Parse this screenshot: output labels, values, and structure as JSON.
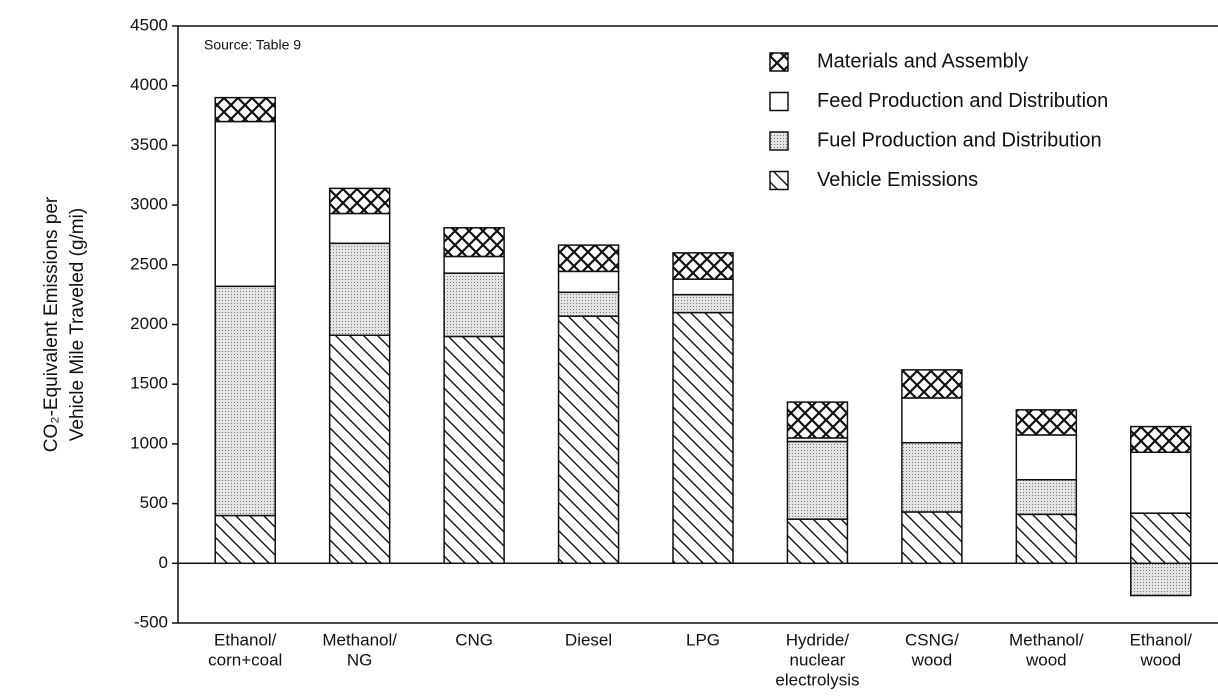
{
  "chart_data": {
    "type": "stacked_bar",
    "ylabel": [
      "CO₂-Equivalent Emissions per",
      "Vehicle Mile Traveled (g/mi)"
    ],
    "annotation": "Source:  Table 9",
    "categories": [
      [
        "Ethanol/",
        "corn+coal"
      ],
      [
        "Methanol/",
        "NG"
      ],
      [
        "CNG"
      ],
      [
        "Diesel"
      ],
      [
        "LPG"
      ],
      [
        "Hydride/",
        "nuclear",
        "electrolysis"
      ],
      [
        "CSNG/",
        "wood"
      ],
      [
        "Methanol/",
        "wood"
      ],
      [
        "Ethanol/",
        "wood"
      ]
    ],
    "series": [
      {
        "name": "Materials and Assembly",
        "color": "#ffffff",
        "pattern": "crosshatch",
        "values": [
          200,
          210,
          240,
          220,
          220,
          300,
          235,
          210,
          215
        ]
      },
      {
        "name": "Feed Production and Distribution",
        "color": "#ffffff",
        "pattern": "none",
        "values": [
          1380,
          250,
          140,
          175,
          130,
          30,
          375,
          375,
          510
        ]
      },
      {
        "name": "Fuel Production and Distribution",
        "color": "#ffffff",
        "pattern": "dots",
        "values": [
          1920,
          770,
          530,
          200,
          150,
          650,
          580,
          290,
          -270
        ]
      },
      {
        "name": "Vehicle Emissions",
        "color": "#ffffff",
        "pattern": "hatch",
        "values": [
          400,
          1910,
          1900,
          2070,
          2100,
          370,
          430,
          410,
          420
        ]
      }
    ],
    "stack_order": "reverse",
    "ylim": [
      -500,
      4500
    ],
    "yticks": [
      -500,
      0,
      500,
      1000,
      1500,
      2000,
      2500,
      3000,
      3500,
      4000,
      4500
    ],
    "legend": "upper right"
  }
}
